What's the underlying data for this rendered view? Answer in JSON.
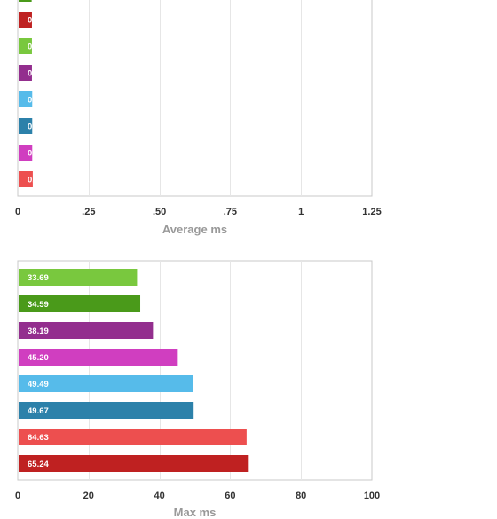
{
  "chart_data": [
    {
      "type": "bar",
      "orientation": "horizontal",
      "xlabel": "Average ms",
      "xlim": [
        0,
        1.25
      ],
      "xticks": [
        {
          "value": 0,
          "label": "0"
        },
        {
          "value": 0.25,
          "label": ".25"
        },
        {
          "value": 0.5,
          "label": ".50"
        },
        {
          "value": 0.75,
          "label": ".75"
        },
        {
          "value": 1,
          "label": "1"
        },
        {
          "value": 1.25,
          "label": "1.25"
        }
      ],
      "grid": true,
      "partial_top_bar": {
        "value": 0.049,
        "color": "#4a9a1a"
      },
      "bars": [
        {
          "label": "0.050",
          "value": 0.05,
          "color": "#bf2121"
        },
        {
          "label": "0.050",
          "value": 0.05,
          "color": "#79c83e"
        },
        {
          "label": "0.050",
          "value": 0.05,
          "color": "#932e8e"
        },
        {
          "label": "0.051",
          "value": 0.051,
          "color": "#56bbea"
        },
        {
          "label": "0.051",
          "value": 0.051,
          "color": "#2c81aa"
        },
        {
          "label": "0.051",
          "value": 0.051,
          "color": "#d03ec0"
        },
        {
          "label": "0.053",
          "value": 0.053,
          "color": "#ed4f4f"
        }
      ]
    },
    {
      "type": "bar",
      "orientation": "horizontal",
      "xlabel": "Max ms",
      "xlim": [
        0,
        100
      ],
      "xticks": [
        {
          "value": 0,
          "label": "0"
        },
        {
          "value": 20,
          "label": "20"
        },
        {
          "value": 40,
          "label": "40"
        },
        {
          "value": 60,
          "label": "60"
        },
        {
          "value": 80,
          "label": "80"
        },
        {
          "value": 100,
          "label": "100"
        }
      ],
      "grid": true,
      "bars": [
        {
          "label": "33.69",
          "value": 33.69,
          "color": "#79c83e"
        },
        {
          "label": "34.59",
          "value": 34.59,
          "color": "#4a9a1a"
        },
        {
          "label": "38.19",
          "value": 38.19,
          "color": "#932e8e"
        },
        {
          "label": "45.20",
          "value": 45.2,
          "color": "#d03ec0"
        },
        {
          "label": "49.49",
          "value": 49.49,
          "color": "#56bbea"
        },
        {
          "label": "49.67",
          "value": 49.67,
          "color": "#2c81aa"
        },
        {
          "label": "64.63",
          "value": 64.63,
          "color": "#ed4f4f"
        },
        {
          "label": "65.24",
          "value": 65.24,
          "color": "#bf2121"
        }
      ]
    }
  ]
}
